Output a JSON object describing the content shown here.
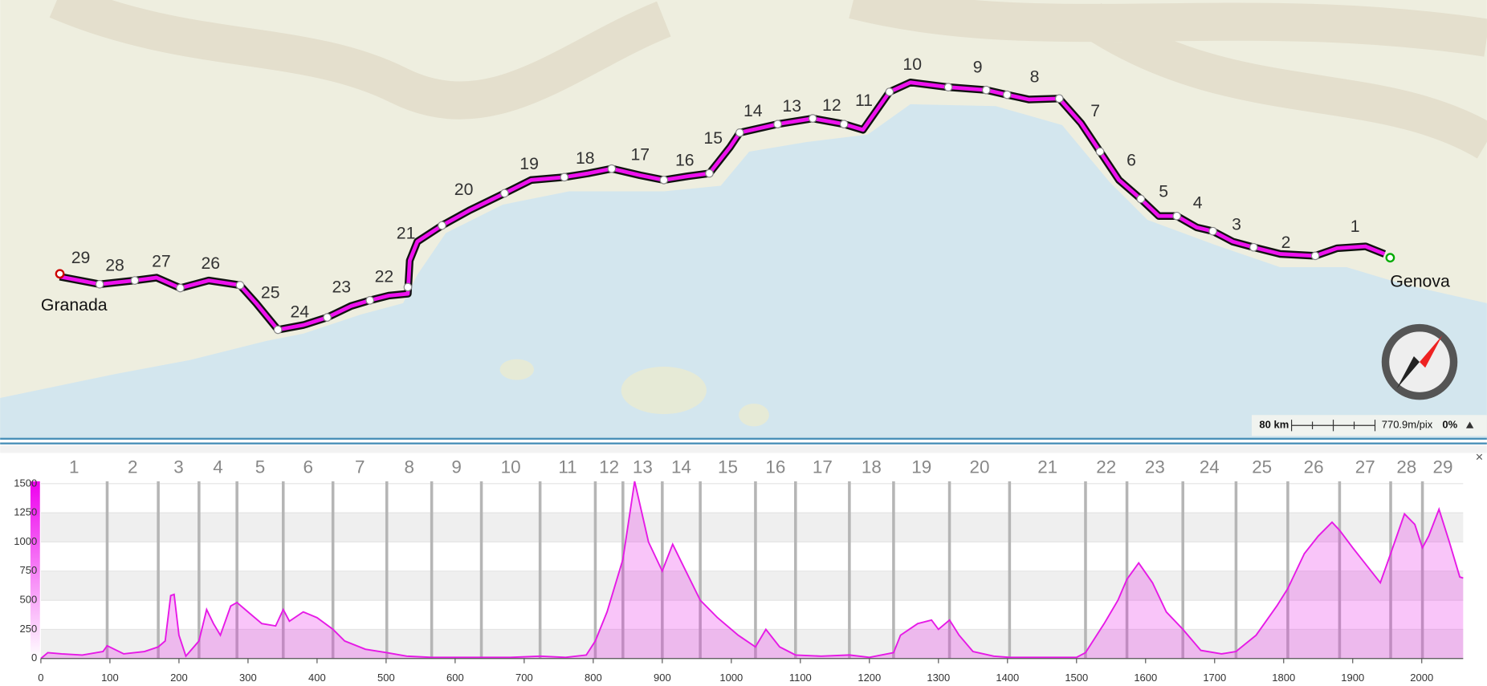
{
  "map": {
    "stage_labels": [
      "1",
      "2",
      "3",
      "4",
      "5",
      "6",
      "7",
      "8",
      "9",
      "10",
      "11",
      "12",
      "13",
      "14",
      "15",
      "16",
      "17",
      "18",
      "19",
      "20",
      "21",
      "22",
      "23",
      "24",
      "25",
      "26",
      "27",
      "28",
      "29"
    ],
    "start": "Granada",
    "end": "Genova",
    "scale": "80 km",
    "resolution": "770.9m/pix",
    "zoom": "0%"
  },
  "ui": {
    "close": "×"
  },
  "chart_data": {
    "type": "area",
    "color": "#e619e6",
    "x": [
      0,
      10,
      30,
      60,
      90,
      96,
      120,
      150,
      170,
      180,
      188,
      193,
      200,
      210,
      229,
      240,
      250,
      260,
      275,
      284,
      300,
      320,
      340,
      351,
      360,
      380,
      400,
      423,
      440,
      470,
      501,
      530,
      566,
      600,
      638,
      680,
      723,
      760,
      790,
      803,
      820,
      843,
      860,
      880,
      900,
      915,
      930,
      955,
      980,
      1010,
      1035,
      1050,
      1070,
      1093,
      1130,
      1171,
      1200,
      1235,
      1245,
      1270,
      1290,
      1300,
      1316,
      1330,
      1350,
      1380,
      1403,
      1450,
      1500,
      1513,
      1540,
      1560,
      1573,
      1590,
      1610,
      1630,
      1654,
      1680,
      1710,
      1731,
      1760,
      1790,
      1806,
      1830,
      1850,
      1870,
      1881,
      1900,
      1920,
      1940,
      1955,
      1975,
      1990,
      2001,
      2010,
      2025,
      2040,
      2055,
      2060
    ],
    "values": [
      0,
      50,
      40,
      30,
      60,
      110,
      40,
      60,
      100,
      150,
      540,
      550,
      200,
      20,
      150,
      420,
      300,
      200,
      450,
      480,
      400,
      300,
      280,
      420,
      320,
      400,
      350,
      250,
      150,
      80,
      50,
      20,
      10,
      10,
      10,
      10,
      20,
      10,
      30,
      150,
      400,
      850,
      1520,
      1000,
      750,
      980,
      800,
      500,
      350,
      200,
      100,
      250,
      100,
      30,
      20,
      30,
      10,
      50,
      200,
      300,
      330,
      250,
      330,
      200,
      60,
      20,
      10,
      10,
      10,
      50,
      300,
      500,
      680,
      820,
      650,
      400,
      250,
      70,
      40,
      60,
      200,
      450,
      600,
      900,
      1050,
      1170,
      1100,
      950,
      800,
      650,
      900,
      1240,
      1150,
      950,
      1050,
      1280,
      1000,
      700,
      690
    ],
    "xlim": [
      0,
      2060
    ],
    "ylim": [
      0,
      1520
    ],
    "xticks": [
      0,
      100,
      200,
      300,
      400,
      500,
      600,
      700,
      800,
      900,
      1000,
      1100,
      1200,
      1300,
      1400,
      1500,
      1600,
      1700,
      1800,
      1900,
      2000
    ],
    "yticks": [
      0,
      250,
      500,
      750,
      1000,
      1250,
      1500
    ],
    "grid": true,
    "stage_labels": [
      "1",
      "2",
      "3",
      "4",
      "5",
      "6",
      "7",
      "8",
      "9",
      "10",
      "11",
      "12",
      "13",
      "14",
      "15",
      "16",
      "17",
      "18",
      "19",
      "20",
      "21",
      "22",
      "23",
      "24",
      "25",
      "26",
      "27",
      "28",
      "29"
    ],
    "stage_boundaries": [
      96,
      170,
      229,
      284,
      351,
      423,
      501,
      566,
      638,
      723,
      803,
      843,
      900,
      955,
      1035,
      1093,
      1171,
      1235,
      1316,
      1403,
      1513,
      1573,
      1654,
      1731,
      1806,
      1881,
      1955,
      2001
    ]
  }
}
